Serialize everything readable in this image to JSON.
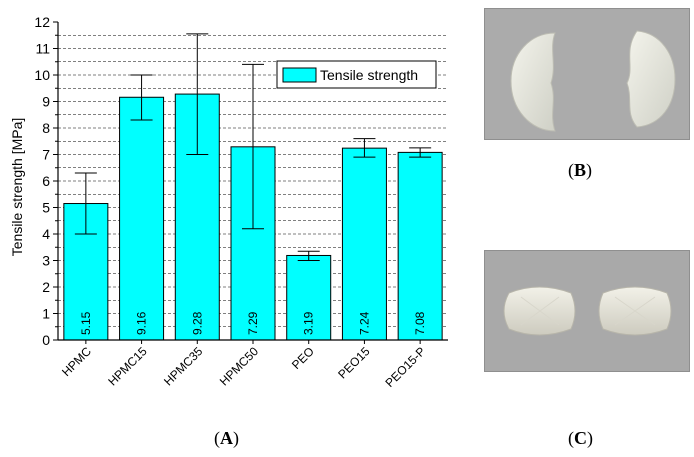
{
  "chart_data": {
    "type": "bar",
    "categories": [
      "HPMC",
      "HPMC15",
      "HPMC35",
      "HPMC50",
      "PEO",
      "PEO15",
      "PEO15-P"
    ],
    "series": [
      {
        "name": "Tensile strength",
        "values": [
          5.15,
          9.16,
          9.28,
          7.29,
          3.19,
          7.24,
          7.08
        ],
        "error_low": [
          4.0,
          8.3,
          7.0,
          4.2,
          3.0,
          6.9,
          6.9
        ],
        "error_high": [
          6.3,
          10.0,
          11.55,
          10.4,
          3.35,
          7.6,
          7.25
        ]
      }
    ],
    "value_labels": [
      "5.15",
      "9.16",
      "9.28",
      "7.29",
      "3.19",
      "7.24",
      "7.08"
    ],
    "ylabel": "Tensile strength [MPa]",
    "xlabel": "",
    "ylim": [
      0,
      12
    ],
    "yticks": [
      "0",
      "1",
      "2",
      "3",
      "4",
      "5",
      "6",
      "7",
      "8",
      "9",
      "10",
      "11",
      "12"
    ],
    "grid": "dashed horizontal at half-units",
    "legend_position": "top-right",
    "colors": {
      "bar": "#00ffff",
      "outline": "#000000"
    }
  },
  "panels": {
    "a": {
      "open": "(",
      "letter": "A",
      "close": ")"
    },
    "b": {
      "open": "(",
      "letter": "B",
      "close": ")"
    },
    "c": {
      "open": "(",
      "letter": "C",
      "close": ")"
    }
  }
}
